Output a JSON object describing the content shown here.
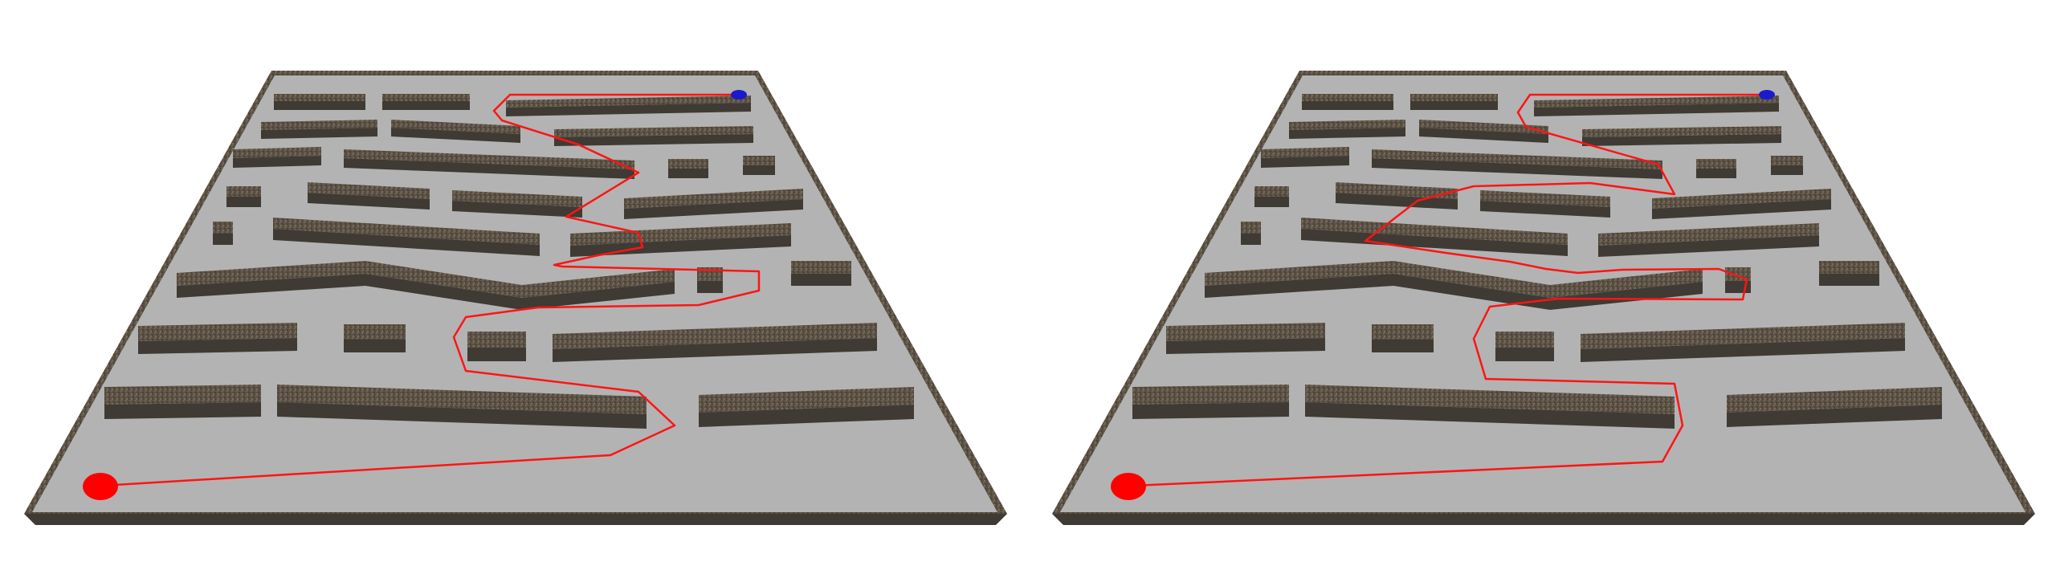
{
  "colors": {
    "background": "#ffffff",
    "floor": "#b3b3b3",
    "wall_top": "#675b4c",
    "wall_front": "#3f3a33",
    "wall_side": "#2f2a24",
    "path": "#ff1414",
    "start_marker": "#ff0000",
    "goal_marker": "#1a1acc"
  },
  "views": [
    {
      "name": "left-maze-view",
      "path_label": "solution-path-1",
      "start_label": "start-marker",
      "goal_label": "goal-marker"
    },
    {
      "name": "right-maze-view",
      "path_label": "solution-path-2",
      "start_label": "start-marker",
      "goal_label": "goal-marker"
    }
  ]
}
